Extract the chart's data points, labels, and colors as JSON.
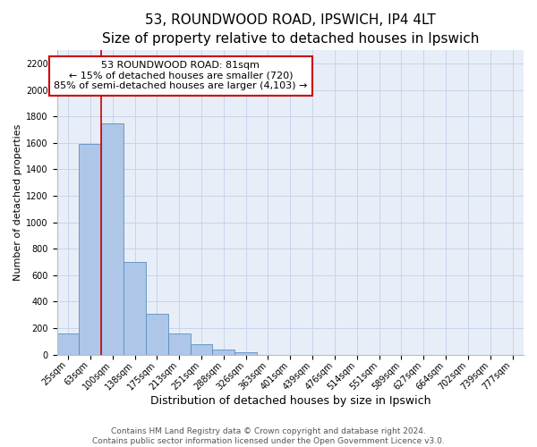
{
  "title": "53, ROUNDWOOD ROAD, IPSWICH, IP4 4LT",
  "subtitle": "Size of property relative to detached houses in Ipswich",
  "xlabel": "Distribution of detached houses by size in Ipswich",
  "ylabel": "Number of detached properties",
  "bar_labels": [
    "25sqm",
    "63sqm",
    "100sqm",
    "138sqm",
    "175sqm",
    "213sqm",
    "251sqm",
    "288sqm",
    "326sqm",
    "363sqm",
    "401sqm",
    "439sqm",
    "476sqm",
    "514sqm",
    "551sqm",
    "589sqm",
    "627sqm",
    "664sqm",
    "702sqm",
    "739sqm",
    "777sqm"
  ],
  "bar_values": [
    160,
    1590,
    1750,
    700,
    310,
    160,
    80,
    40,
    20,
    0,
    0,
    0,
    0,
    0,
    0,
    0,
    0,
    0,
    0,
    0,
    0
  ],
  "bar_color": "#aec6e8",
  "bar_edge_color": "#5b8fbe",
  "ylim": [
    0,
    2300
  ],
  "yticks": [
    0,
    200,
    400,
    600,
    800,
    1000,
    1200,
    1400,
    1600,
    1800,
    2000,
    2200
  ],
  "property_line_label": "53 ROUNDWOOD ROAD: 81sqm",
  "annotation_line1": "← 15% of detached houses are smaller (720)",
  "annotation_line2": "85% of semi-detached houses are larger (4,103) →",
  "vline_color": "#cc0000",
  "footnote1": "Contains HM Land Registry data © Crown copyright and database right 2024.",
  "footnote2": "Contains public sector information licensed under the Open Government Licence v3.0.",
  "background_color": "#e8eef8",
  "grid_color": "#c8d4ec",
  "title_fontsize": 11,
  "subtitle_fontsize": 9.5,
  "xlabel_fontsize": 9,
  "ylabel_fontsize": 8,
  "tick_fontsize": 7,
  "annotation_fontsize": 8,
  "footnote_fontsize": 6.5
}
